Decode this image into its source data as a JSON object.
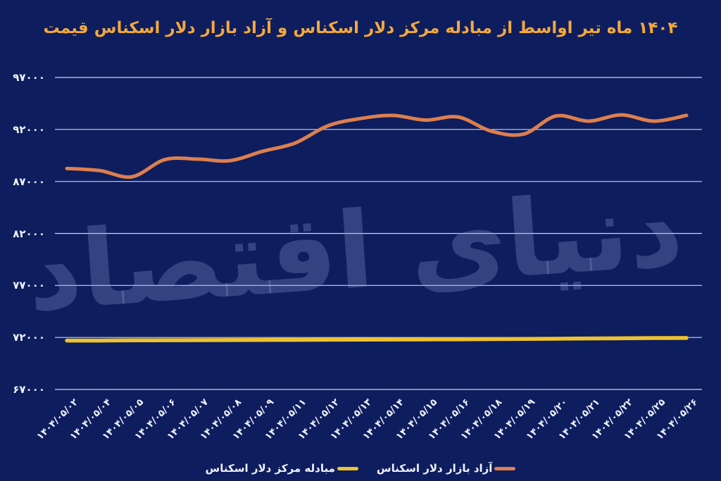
{
  "title": "قیمت اسکناس دلار بازار آزاد و اسکناس دلار مرکز مبادله از اواسط تیر ماه ۱۴۰۴",
  "watermark": "دنیای اقتصاد",
  "colors": {
    "background": "#0e1d5e",
    "title": "#f3a83b",
    "grid": "#d6def2",
    "tick_label": "#eef2fb",
    "free_market_line": "#dd7f4e",
    "exchange_center_line": "#eec22d",
    "watermark": "rgba(147,167,224,0.28)"
  },
  "y_axis": {
    "tick_labels": [
      "۹۷۰۰۰",
      "۹۲۰۰۰",
      "۸۷۰۰۰",
      "۸۲۰۰۰",
      "۷۷۰۰۰",
      "۷۲۰۰۰",
      "۶۷۰۰۰"
    ],
    "tick_values": [
      97000,
      92000,
      87000,
      82000,
      77000,
      72000,
      67000
    ]
  },
  "legend": [
    {
      "label": "اسکناس دلار مرکز مبادله",
      "series_key": "exchange_center"
    },
    {
      "label": "اسکناس دلار بازار آزاد",
      "series_key": "free_market"
    }
  ],
  "chart_data": {
    "type": "line",
    "title": "قیمت اسکناس دلار بازار آزاد و اسکناس دلار مرکز مبادله از اواسط تیر ماه ۱۴۰۴",
    "xlabel": "",
    "ylabel": "",
    "ylim": [
      67000,
      97000
    ],
    "grid": true,
    "legend_position": "bottom",
    "categories": [
      "۱۴۰۴/۰۵/۰۲",
      "۱۴۰۴/۰۵/۰۴",
      "۱۴۰۴/۰۵/۰۵",
      "۱۴۰۴/۰۵/۰۶",
      "۱۴۰۴/۰۵/۰۷",
      "۱۴۰۴/۰۵/۰۸",
      "۱۴۰۴/۰۵/۰۹",
      "۱۴۰۴/۰۵/۱۱",
      "۱۴۰۴/۰۵/۱۲",
      "۱۴۰۴/۰۵/۱۳",
      "۱۴۰۴/۰۵/۱۴",
      "۱۴۰۴/۰۵/۱۵",
      "۱۴۰۴/۰۵/۱۶",
      "۱۴۰۴/۰۵/۱۸",
      "۱۴۰۴/۰۵/۱۹",
      "۱۴۰۴/۰۵/۲۰",
      "۱۴۰۴/۰۵/۲۱",
      "۱۴۰۴/۰۵/۲۲",
      "۱۴۰۴/۰۵/۲۵",
      "۱۴۰۴/۰۵/۲۶"
    ],
    "series": [
      {
        "name": "اسکناس دلار بازار آزاد",
        "key": "free_market",
        "values": [
          88250,
          88050,
          87450,
          89100,
          89150,
          89000,
          89900,
          90700,
          92350,
          93050,
          93350,
          92900,
          93200,
          91850,
          91550,
          93300,
          92800,
          93400,
          92800,
          93350
        ]
      },
      {
        "name": "اسکناس دلار مرکز مبادله",
        "key": "exchange_center",
        "values": [
          71700,
          71700,
          71720,
          71730,
          71740,
          71750,
          71760,
          71770,
          71780,
          71790,
          71800,
          71810,
          71820,
          71840,
          71860,
          71880,
          71900,
          71920,
          71940,
          71950
        ]
      }
    ]
  }
}
